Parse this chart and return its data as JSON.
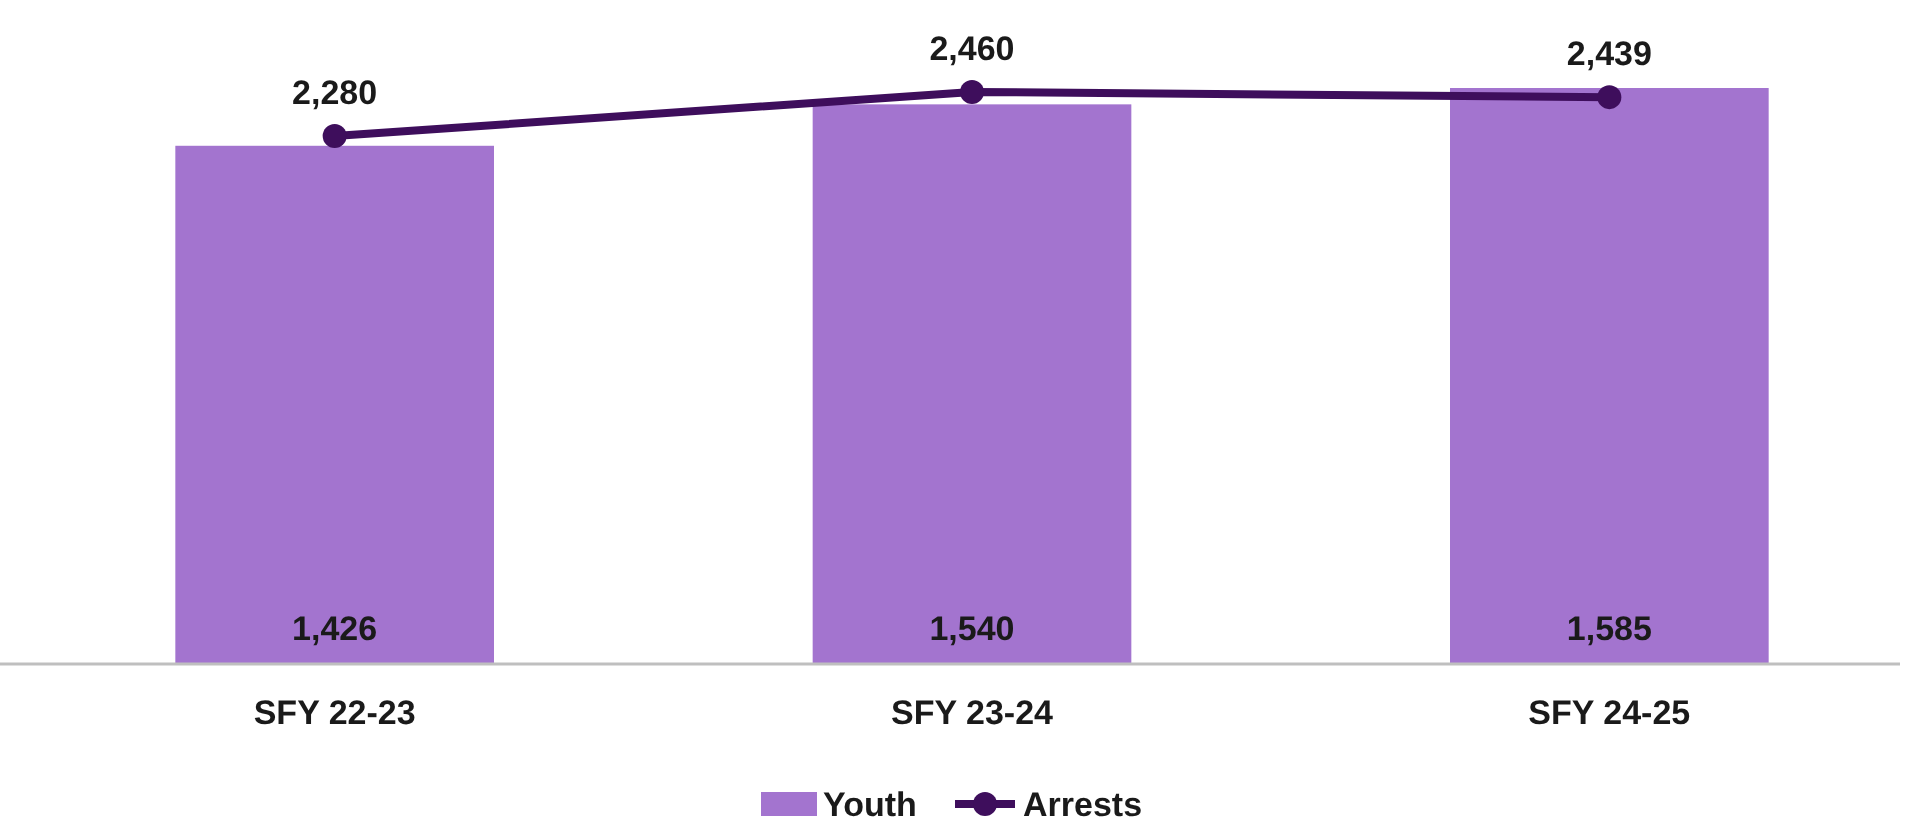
{
  "chart_data": {
    "type": "bar",
    "categories": [
      "SFY 22-23",
      "SFY 23-24",
      "SFY 24-25"
    ],
    "series": [
      {
        "name": "Youth",
        "color": "#a374cf",
        "values": [
          1426,
          1540,
          1585
        ],
        "value_labels": [
          "1,426",
          "1,540",
          "1,585"
        ]
      },
      {
        "name": "Arrests",
        "type": "line",
        "axis": "y2",
        "color": "#3e0e5c",
        "values": [
          2280,
          2460,
          2439
        ],
        "value_labels": [
          "2,280",
          "2,460",
          "2,439"
        ]
      }
    ],
    "tick_labels": "x",
    "legend": "bottom",
    "marker": "circle",
    "line_style": "solid"
  }
}
